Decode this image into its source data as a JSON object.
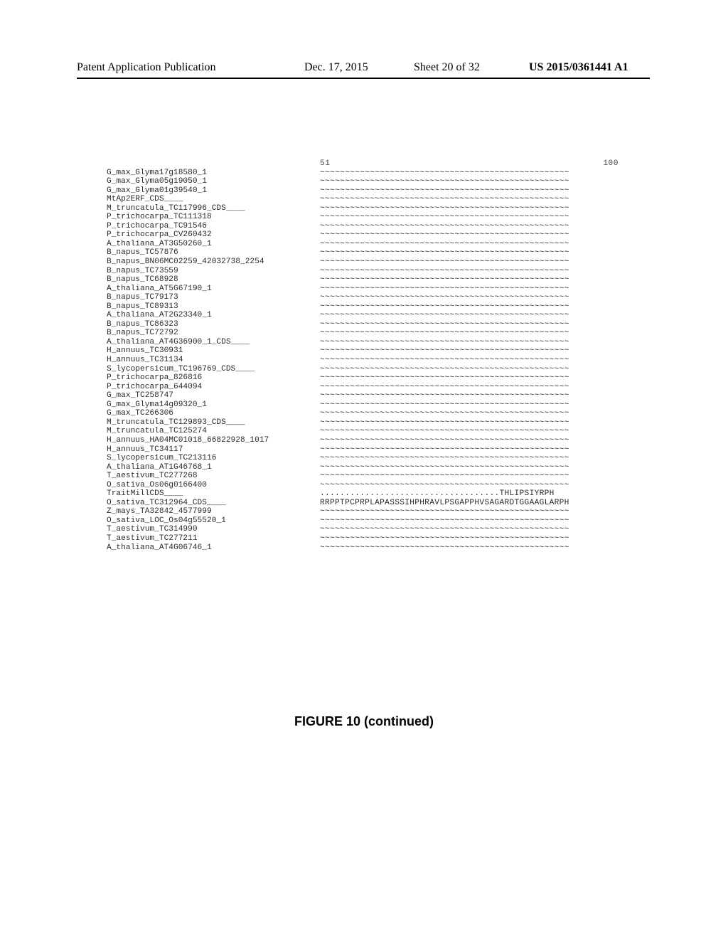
{
  "header": {
    "publication_label": "Patent Application Publication",
    "publication_date": "Dec. 17, 2015",
    "sheet_info": "Sheet 20 of 32",
    "publication_number": "US 2015/0361441 A1"
  },
  "alignment": {
    "col_start": "51",
    "col_end": "100",
    "gap_line_50": "~~~~~~~~~~~~~~~~~~~~~~~~~~~~~~~~~~~~~~~~~~~~~~~~~~",
    "rows": [
      {
        "label": "G_max_Glyma17g18580_1",
        "seq": "~~~~~~~~~~~~~~~~~~~~~~~~~~~~~~~~~~~~~~~~~~~~~~~~~~"
      },
      {
        "label": "G_max_Glyma05g19050_1",
        "seq": "~~~~~~~~~~~~~~~~~~~~~~~~~~~~~~~~~~~~~~~~~~~~~~~~~~"
      },
      {
        "label": "G_max_Glyma01g39540_1",
        "seq": "~~~~~~~~~~~~~~~~~~~~~~~~~~~~~~~~~~~~~~~~~~~~~~~~~~"
      },
      {
        "label": "MtAp2ERF_CDS____",
        "seq": "~~~~~~~~~~~~~~~~~~~~~~~~~~~~~~~~~~~~~~~~~~~~~~~~~~"
      },
      {
        "label": "M_truncatula_TC117996_CDS____",
        "seq": "~~~~~~~~~~~~~~~~~~~~~~~~~~~~~~~~~~~~~~~~~~~~~~~~~~"
      },
      {
        "label": "P_trichocarpa_TC111318",
        "seq": "~~~~~~~~~~~~~~~~~~~~~~~~~~~~~~~~~~~~~~~~~~~~~~~~~~"
      },
      {
        "label": "P_trichocarpa_TC91546",
        "seq": "~~~~~~~~~~~~~~~~~~~~~~~~~~~~~~~~~~~~~~~~~~~~~~~~~~"
      },
      {
        "label": "P_trichocarpa_CV260432",
        "seq": "~~~~~~~~~~~~~~~~~~~~~~~~~~~~~~~~~~~~~~~~~~~~~~~~~~"
      },
      {
        "label": "A_thaliana_AT3G50260_1",
        "seq": "~~~~~~~~~~~~~~~~~~~~~~~~~~~~~~~~~~~~~~~~~~~~~~~~~~"
      },
      {
        "label": "B_napus_TC57876",
        "seq": "~~~~~~~~~~~~~~~~~~~~~~~~~~~~~~~~~~~~~~~~~~~~~~~~~~"
      },
      {
        "label": "B_napus_BN06MC02259_42032738_2254",
        "seq": "~~~~~~~~~~~~~~~~~~~~~~~~~~~~~~~~~~~~~~~~~~~~~~~~~~"
      },
      {
        "label": "B_napus_TC73559",
        "seq": "~~~~~~~~~~~~~~~~~~~~~~~~~~~~~~~~~~~~~~~~~~~~~~~~~~"
      },
      {
        "label": "B_napus_TC68928",
        "seq": "~~~~~~~~~~~~~~~~~~~~~~~~~~~~~~~~~~~~~~~~~~~~~~~~~~"
      },
      {
        "label": "A_thaliana_AT5G67190_1",
        "seq": "~~~~~~~~~~~~~~~~~~~~~~~~~~~~~~~~~~~~~~~~~~~~~~~~~~"
      },
      {
        "label": "B_napus_TC79173",
        "seq": "~~~~~~~~~~~~~~~~~~~~~~~~~~~~~~~~~~~~~~~~~~~~~~~~~~"
      },
      {
        "label": "B_napus_TC89313",
        "seq": "~~~~~~~~~~~~~~~~~~~~~~~~~~~~~~~~~~~~~~~~~~~~~~~~~~"
      },
      {
        "label": "A_thaliana_AT2G23340_1",
        "seq": "~~~~~~~~~~~~~~~~~~~~~~~~~~~~~~~~~~~~~~~~~~~~~~~~~~"
      },
      {
        "label": "B_napus_TC86323",
        "seq": "~~~~~~~~~~~~~~~~~~~~~~~~~~~~~~~~~~~~~~~~~~~~~~~~~~"
      },
      {
        "label": "B_napus_TC72792",
        "seq": "~~~~~~~~~~~~~~~~~~~~~~~~~~~~~~~~~~~~~~~~~~~~~~~~~~"
      },
      {
        "label": "A_thaliana_AT4G36900_1_CDS____",
        "seq": "~~~~~~~~~~~~~~~~~~~~~~~~~~~~~~~~~~~~~~~~~~~~~~~~~~"
      },
      {
        "label": "H_annuus_TC30931",
        "seq": "~~~~~~~~~~~~~~~~~~~~~~~~~~~~~~~~~~~~~~~~~~~~~~~~~~"
      },
      {
        "label": "H_annuus_TC31134",
        "seq": "~~~~~~~~~~~~~~~~~~~~~~~~~~~~~~~~~~~~~~~~~~~~~~~~~~"
      },
      {
        "label": "S_lycopersicum_TC196769_CDS____",
        "seq": "~~~~~~~~~~~~~~~~~~~~~~~~~~~~~~~~~~~~~~~~~~~~~~~~~~"
      },
      {
        "label": "P_trichocarpa_826816",
        "seq": "~~~~~~~~~~~~~~~~~~~~~~~~~~~~~~~~~~~~~~~~~~~~~~~~~~"
      },
      {
        "label": "P_trichocarpa_644094",
        "seq": "~~~~~~~~~~~~~~~~~~~~~~~~~~~~~~~~~~~~~~~~~~~~~~~~~~"
      },
      {
        "label": "G_max_TC258747",
        "seq": "~~~~~~~~~~~~~~~~~~~~~~~~~~~~~~~~~~~~~~~~~~~~~~~~~~"
      },
      {
        "label": "G_max_Glyma14g09320_1",
        "seq": "~~~~~~~~~~~~~~~~~~~~~~~~~~~~~~~~~~~~~~~~~~~~~~~~~~"
      },
      {
        "label": "G_max_TC266306",
        "seq": "~~~~~~~~~~~~~~~~~~~~~~~~~~~~~~~~~~~~~~~~~~~~~~~~~~"
      },
      {
        "label": "M_truncatula_TC129893_CDS____",
        "seq": "~~~~~~~~~~~~~~~~~~~~~~~~~~~~~~~~~~~~~~~~~~~~~~~~~~"
      },
      {
        "label": "M_truncatula_TC125274",
        "seq": "~~~~~~~~~~~~~~~~~~~~~~~~~~~~~~~~~~~~~~~~~~~~~~~~~~"
      },
      {
        "label": "H_annuus_HA04MC01018_66822928_1017",
        "seq": "~~~~~~~~~~~~~~~~~~~~~~~~~~~~~~~~~~~~~~~~~~~~~~~~~~"
      },
      {
        "label": "H_annuus_TC34117",
        "seq": "~~~~~~~~~~~~~~~~~~~~~~~~~~~~~~~~~~~~~~~~~~~~~~~~~~"
      },
      {
        "label": "S_lycopersicum_TC213116",
        "seq": "~~~~~~~~~~~~~~~~~~~~~~~~~~~~~~~~~~~~~~~~~~~~~~~~~~"
      },
      {
        "label": "A_thaliana_AT1G46768_1",
        "seq": "~~~~~~~~~~~~~~~~~~~~~~~~~~~~~~~~~~~~~~~~~~~~~~~~~~"
      },
      {
        "label": "T_aestivum_TC277268",
        "seq": "~~~~~~~~~~~~~~~~~~~~~~~~~~~~~~~~~~~~~~~~~~~~~~~~~~"
      },
      {
        "label": "O_sativa_Os06g0166400",
        "seq": "~~~~~~~~~~~~~~~~~~~~~~~~~~~~~~~~~~~~~~~~~~~~~~~~~~"
      },
      {
        "label": "TraitMillCDS____",
        "seq": "....................................THLIPSIYRPH"
      },
      {
        "label": "O_sativa_TC312964_CDS____",
        "seq": "RRPPTPCPRPLAPASSSIHPHRAVLPSGAPPHVSAGARDTGGAAGLARPH"
      },
      {
        "label": "Z_mays_TA32842_4577999",
        "seq": "~~~~~~~~~~~~~~~~~~~~~~~~~~~~~~~~~~~~~~~~~~~~~~~~~~"
      },
      {
        "label": "O_sativa_LOC_Os04g55520_1",
        "seq": "~~~~~~~~~~~~~~~~~~~~~~~~~~~~~~~~~~~~~~~~~~~~~~~~~~"
      },
      {
        "label": "T_aestivum_TC314990",
        "seq": "~~~~~~~~~~~~~~~~~~~~~~~~~~~~~~~~~~~~~~~~~~~~~~~~~~"
      },
      {
        "label": "T_aestivum_TC277211",
        "seq": "~~~~~~~~~~~~~~~~~~~~~~~~~~~~~~~~~~~~~~~~~~~~~~~~~~"
      },
      {
        "label": "A_thaliana_AT4G06746_1",
        "seq": "~~~~~~~~~~~~~~~~~~~~~~~~~~~~~~~~~~~~~~~~~~~~~~~~~~"
      }
    ]
  },
  "figure_caption": "FIGURE 10 (continued)"
}
